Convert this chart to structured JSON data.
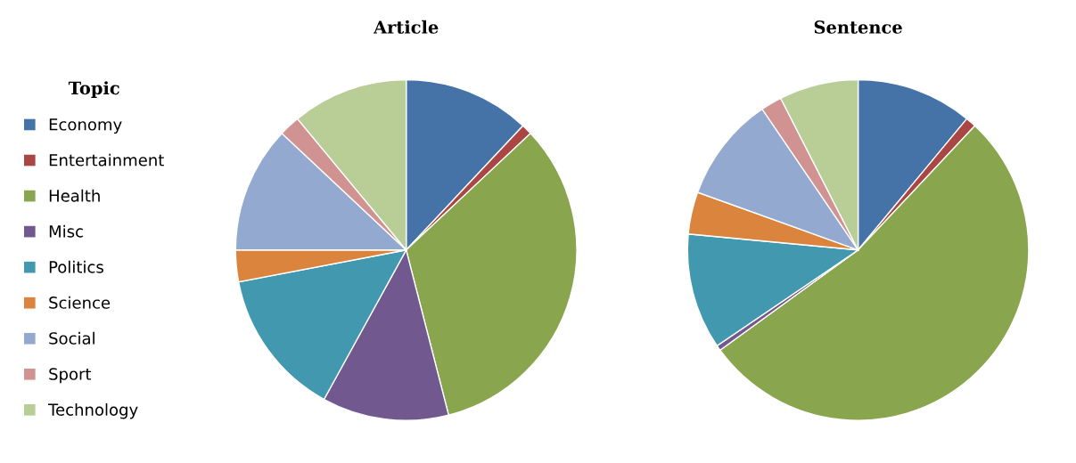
{
  "chart_data": [
    {
      "type": "pie",
      "title": "Article",
      "legend_title": "Topic",
      "legend": "left",
      "categories": [
        "Economy",
        "Entertainment",
        "Health",
        "Misc",
        "Politics",
        "Science",
        "Social",
        "Sport",
        "Technology"
      ],
      "values": [
        12,
        1,
        33,
        12,
        14,
        3,
        12,
        2,
        11
      ],
      "colors": [
        "#4572a7",
        "#aa4643",
        "#89a54e",
        "#71588f",
        "#4198af",
        "#db843d",
        "#93a9cf",
        "#d19392",
        "#b9cd96"
      ]
    },
    {
      "type": "pie",
      "title": "Sentence",
      "categories": [
        null,
        null,
        null,
        null,
        null,
        null,
        null,
        null,
        null
      ],
      "values": [
        11,
        1,
        53,
        0.5,
        11,
        4,
        10,
        2,
        7.5
      ],
      "colors": [
        "#4572a7",
        "#aa4643",
        "#89a54e",
        "#71588f",
        "#4198af",
        "#db843d",
        "#93a9cf",
        "#d19392",
        "#b9cd96"
      ]
    }
  ]
}
